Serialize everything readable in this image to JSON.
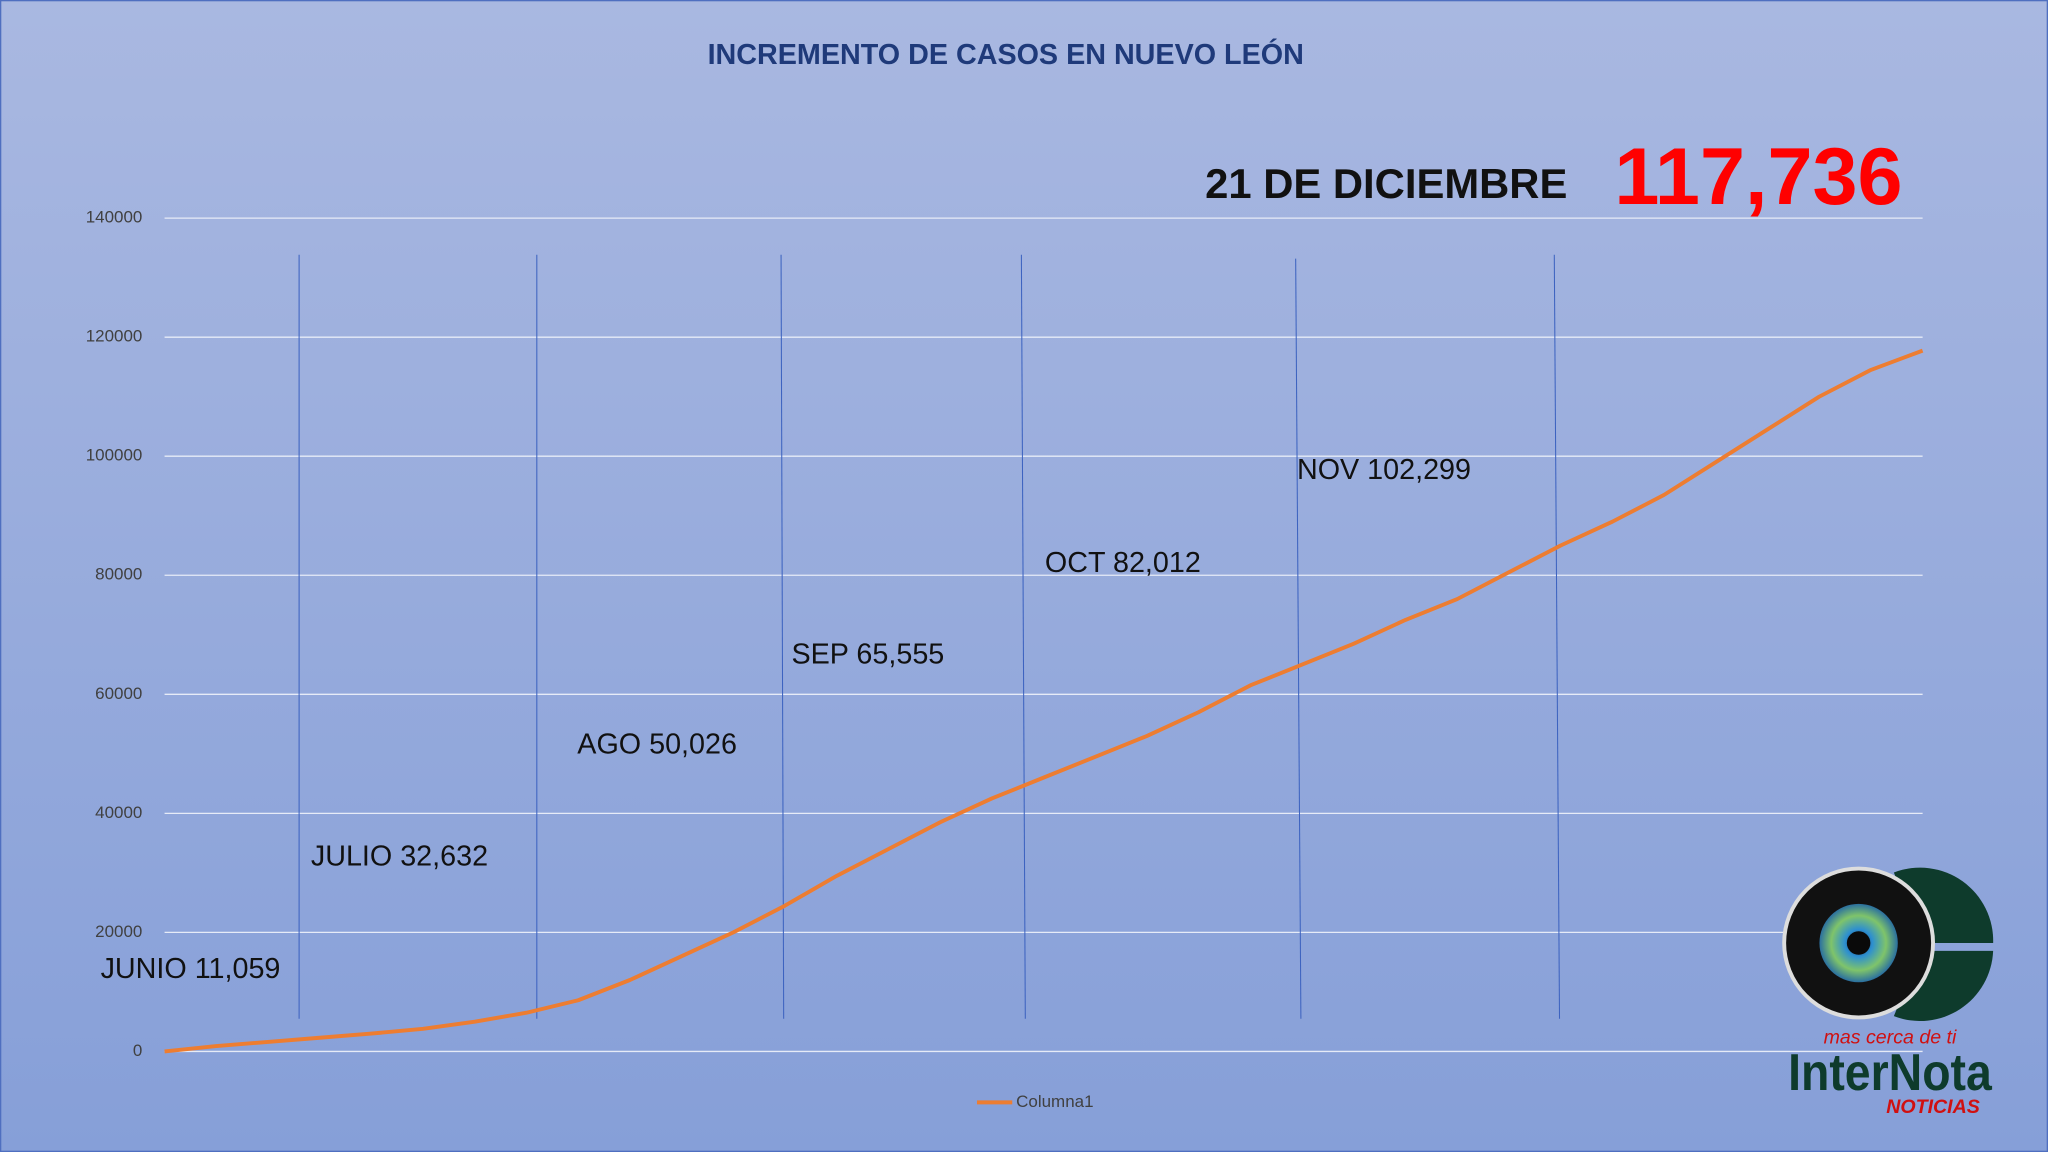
{
  "chart_data": {
    "type": "line",
    "title": "INCREMENTO DE CASOS EN NUEVO LEÓN",
    "headline": {
      "date": "21 DE DICIEMBRE",
      "total": "117,736"
    },
    "annotations": [
      "JUNIO 11,059",
      "JULIO 32,632",
      "AGO 50,026",
      "SEP 65,555",
      "OCT 82,012",
      "NOV 102,299"
    ],
    "categories": [
      null,
      null,
      null,
      null,
      null,
      null,
      null,
      null,
      null,
      null,
      null,
      null,
      null,
      null,
      null,
      null,
      null,
      null,
      null,
      null,
      null,
      null,
      null,
      null,
      null,
      null,
      null,
      null,
      null,
      null,
      null,
      null,
      null,
      null,
      null
    ],
    "series": [
      {
        "name": "Columna1",
        "color": "#ed7d31",
        "values": [
          0,
          900,
          1600,
          2300,
          3000,
          3800,
          5000,
          6500,
          8600,
          12000,
          16000,
          20000,
          24500,
          29500,
          34000,
          38500,
          42500,
          46000,
          49500,
          53000,
          57000,
          61500,
          65000,
          68500,
          72500,
          76000,
          80500,
          85000,
          89000,
          93500,
          99000,
          104500,
          110000,
          114500,
          117736
        ]
      }
    ],
    "ylim": [
      0,
      140000
    ],
    "yticks": [
      0,
      20000,
      40000,
      60000,
      80000,
      100000,
      120000,
      140000
    ],
    "grid": true,
    "legend": "bottom",
    "logo": {
      "tagline": "mas cerca de ti",
      "name": "InterNota",
      "sub": "NOTICIAS"
    }
  }
}
